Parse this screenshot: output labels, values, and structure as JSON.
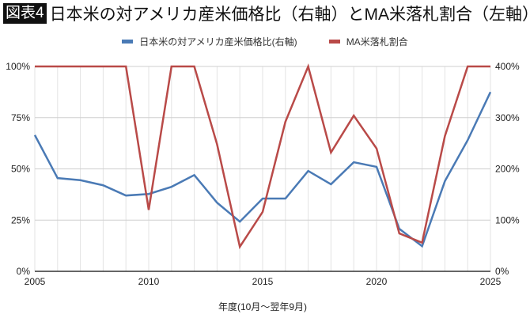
{
  "chart_data": {
    "type": "line",
    "badge": "図表4",
    "title": "日本米の対アメリカ産米価格比（右軸）とMA米落札割合（左軸）",
    "xlabel": "年度(10月～翌年9月)",
    "x": [
      2005,
      2006,
      2007,
      2008,
      2009,
      2010,
      2011,
      2012,
      2013,
      2014,
      2015,
      2016,
      2017,
      2018,
      2019,
      2020,
      2021,
      2022,
      2023,
      2024,
      2025
    ],
    "x_ticks": [
      "2005",
      "2010",
      "2015",
      "2020",
      "2025"
    ],
    "y_left_ticks": [
      "0%",
      "25%",
      "50%",
      "75%",
      "100%"
    ],
    "y_right_ticks": [
      "0%",
      "100%",
      "200%",
      "300%",
      "400%"
    ],
    "ylim_left": [
      0,
      100
    ],
    "ylim_right": [
      0,
      400
    ],
    "grid": true,
    "legend_position": "top",
    "series": [
      {
        "name": "日本米の対アメリカ産米価格比(右軸)",
        "axis": "right",
        "color": "#4a7ab5",
        "values": [
          266,
          182,
          178,
          168,
          148,
          151,
          165,
          188,
          134,
          97,
          142,
          142,
          196,
          170,
          213,
          204,
          83,
          49,
          176,
          256,
          350
        ]
      },
      {
        "name": "MA米落札割合",
        "axis": "left",
        "color": "#b94a48",
        "values": [
          100,
          100,
          100,
          100,
          100,
          30,
          100,
          100,
          62,
          12,
          29,
          73,
          100,
          58,
          76,
          60,
          18.5,
          14,
          66,
          100,
          100
        ]
      }
    ]
  }
}
